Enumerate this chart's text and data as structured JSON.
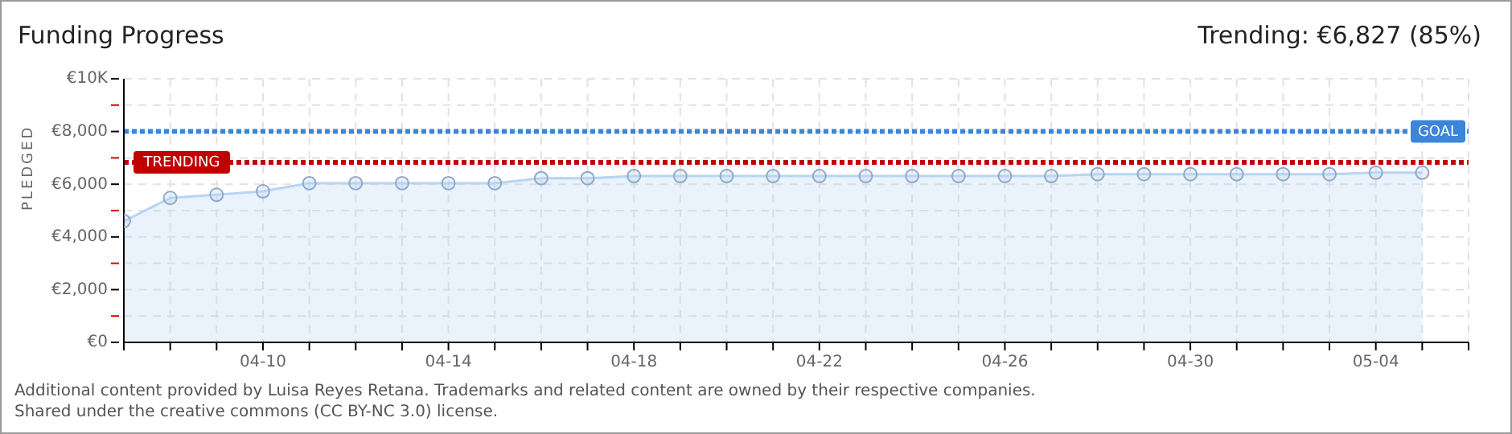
{
  "chart_data": {
    "type": "area",
    "title": "Funding Progress",
    "subtitle": "Trending: €6,827 (85%)",
    "ylabel": "PLEDGED",
    "x": [
      "--04-07",
      "--04-08",
      "--04-09",
      "--04-10",
      "--04-11",
      "--04-12",
      "--04-13",
      "--04-14",
      "--04-15",
      "--04-16",
      "--04-17",
      "--04-18",
      "--04-19",
      "--04-20",
      "--04-21",
      "--04-22",
      "--04-23",
      "--04-24",
      "--04-25",
      "--04-26",
      "--04-27",
      "--04-28",
      "--04-29",
      "--04-30",
      "--05-01",
      "--05-02",
      "--05-03",
      "--05-04",
      "--05-05"
    ],
    "series": [
      {
        "color": "#b8d4f2",
        "values": [
          4600,
          5480,
          5600,
          5730,
          6040,
          6040,
          6040,
          6040,
          6040,
          6230,
          6230,
          6310,
          6310,
          6310,
          6310,
          6310,
          6310,
          6310,
          6310,
          6310,
          6310,
          6380,
          6380,
          6380,
          6380,
          6380,
          6380,
          6440,
          6440
        ]
      }
    ],
    "xlim": [
      "--04-07",
      "--05-06"
    ],
    "xticks": [
      {
        "value": "--04-07",
        "label": null
      },
      {
        "value": "--04-08",
        "label": null
      },
      {
        "value": "--04-09",
        "label": null
      },
      {
        "value": "--04-10",
        "label": "04-10"
      },
      {
        "value": "--04-11",
        "label": null
      },
      {
        "value": "--04-12",
        "label": null
      },
      {
        "value": "--04-13",
        "label": null
      },
      {
        "value": "--04-14",
        "label": "04-14"
      },
      {
        "value": "--04-15",
        "label": null
      },
      {
        "value": "--04-16",
        "label": null
      },
      {
        "value": "--04-17",
        "label": null
      },
      {
        "value": "--04-18",
        "label": "04-18"
      },
      {
        "value": "--04-19",
        "label": null
      },
      {
        "value": "--04-20",
        "label": null
      },
      {
        "value": "--04-21",
        "label": null
      },
      {
        "value": "--04-22",
        "label": "04-22"
      },
      {
        "value": "--04-23",
        "label": null
      },
      {
        "value": "--04-24",
        "label": null
      },
      {
        "value": "--04-25",
        "label": null
      },
      {
        "value": "--04-26",
        "label": "04-26"
      },
      {
        "value": "--04-27",
        "label": null
      },
      {
        "value": "--04-28",
        "label": null
      },
      {
        "value": "--04-29",
        "label": null
      },
      {
        "value": "--04-30",
        "label": "04-30"
      },
      {
        "value": "--05-01",
        "label": null
      },
      {
        "value": "--05-02",
        "label": null
      },
      {
        "value": "--05-03",
        "label": null
      },
      {
        "value": "--05-04",
        "label": "05-04"
      },
      {
        "value": "--05-05",
        "label": null
      },
      {
        "value": "--05-06",
        "label": null
      }
    ],
    "ylim": [
      0,
      10000
    ],
    "yticks": [
      {
        "value": 0,
        "label": "€0"
      },
      {
        "value": 1000,
        "label": null
      },
      {
        "value": 2000,
        "label": "€2,000"
      },
      {
        "value": 3000,
        "label": null
      },
      {
        "value": 4000,
        "label": "€4,000"
      },
      {
        "value": 5000,
        "label": null
      },
      {
        "value": 6000,
        "label": "€6,000"
      },
      {
        "value": 7000,
        "label": null
      },
      {
        "value": 8000,
        "label": "€8,000"
      },
      {
        "value": 9000,
        "label": null
      },
      {
        "value": 10000,
        "label": "€10K"
      }
    ],
    "ref_lines": [
      {
        "axis": "y",
        "value": 8000,
        "label": "GOAL",
        "color": "#3d85d8",
        "line_style": "dotted"
      },
      {
        "axis": "y",
        "value": 6827,
        "label": "TRENDING",
        "color": "#c00000",
        "line_style": "dotted"
      }
    ],
    "grid": true,
    "marker": "circle",
    "annotations": [
      "Additional content provided by Luisa Reyes Retana. Trademarks and related content are owned by their respective companies.",
      "Shared under the creative commons (CC BY-NC 3.0) license."
    ]
  }
}
